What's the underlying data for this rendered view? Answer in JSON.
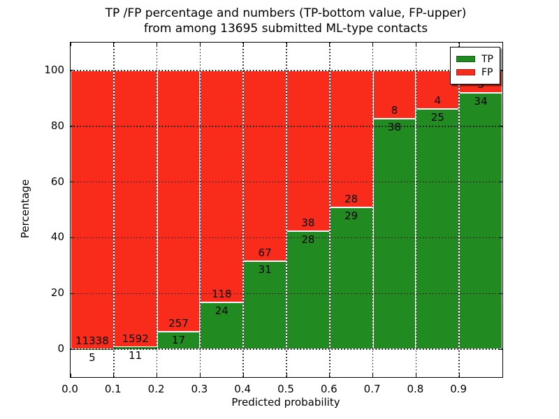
{
  "chart_data": {
    "type": "bar",
    "stacked": true,
    "title": "TP /FP percentage and numbers (TP-bottom value, FP-upper) from among 13695 submitted ML-type contacts",
    "title_lines": [
      "TP /FP percentage and numbers (TP-bottom value, FP-upper)",
      "from among 13695 submitted ML-type contacts"
    ],
    "xlabel": "Predicted probability",
    "ylabel": "Percentage",
    "xlim": [
      0.0,
      1.0
    ],
    "ylim": [
      -10,
      110
    ],
    "x_tick_labels": [
      "0.0",
      "0.1",
      "0.2",
      "0.3",
      "0.4",
      "0.5",
      "0.6",
      "0.7",
      "0.8",
      "0.9"
    ],
    "y_tick_values": [
      0,
      20,
      40,
      60,
      80,
      100
    ],
    "bins": [
      "0.0-0.1",
      "0.1-0.2",
      "0.2-0.3",
      "0.3-0.4",
      "0.4-0.5",
      "0.5-0.6",
      "0.6-0.7",
      "0.7-0.8",
      "0.8-0.9",
      "0.9-1.0"
    ],
    "series": [
      {
        "name": "TP",
        "color": "#218a21",
        "counts": [
          5,
          11,
          17,
          24,
          31,
          28,
          29,
          38,
          25,
          34
        ],
        "percent": [
          0.04,
          0.69,
          6.2,
          16.9,
          31.63,
          42.42,
          50.88,
          82.61,
          86.21,
          91.89
        ]
      },
      {
        "name": "FP",
        "color": "#f92c1c",
        "counts": [
          11338,
          1592,
          257,
          118,
          67,
          38,
          28,
          8,
          4,
          3
        ],
        "percent": [
          99.96,
          99.31,
          93.8,
          83.1,
          68.37,
          57.58,
          49.12,
          17.39,
          13.79,
          8.11
        ]
      }
    ],
    "total_contacts": 13695,
    "grid": "dotted",
    "legend_position": "upper-right"
  }
}
